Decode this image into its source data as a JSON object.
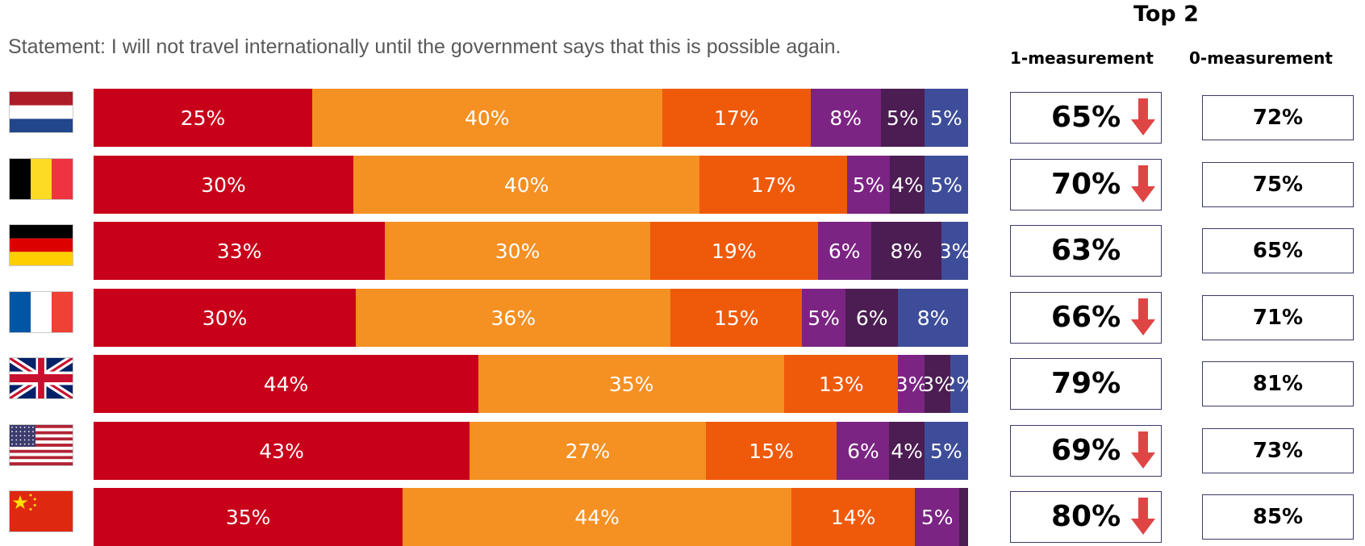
{
  "header": {
    "statement": "Statement: I will not travel internationally until the government says that this is possible again.",
    "top2_label": "Top 2",
    "col_1_label": "1-measurement",
    "col_0_label": "0-measurement"
  },
  "colors": {
    "seg1": "#c8001a",
    "seg2": "#f59023",
    "seg3": "#ef5a0a",
    "seg4": "#7b2483",
    "seg5": "#4b1d52",
    "seg6": "#3e4d9a",
    "arrow": "#e04545"
  },
  "chart_data": {
    "type": "bar",
    "orientation": "horizontal-stacked-100",
    "categories": [
      "Netherlands",
      "Belgium",
      "Germany",
      "France",
      "United Kingdom",
      "United States",
      "China"
    ],
    "series": [
      {
        "values": [
          25,
          30,
          33,
          30,
          44,
          43,
          35
        ],
        "labels": [
          "25%",
          "30%",
          "33%",
          "30%",
          "44%",
          "43%",
          "35%"
        ]
      },
      {
        "values": [
          40,
          40,
          30,
          36,
          35,
          27,
          44
        ],
        "labels": [
          "40%",
          "40%",
          "30%",
          "36%",
          "35%",
          "27%",
          "44%"
        ]
      },
      {
        "values": [
          17,
          17,
          19,
          15,
          13,
          15,
          14
        ],
        "labels": [
          "17%",
          "17%",
          "19%",
          "15%",
          "13%",
          "15%",
          "14%"
        ]
      },
      {
        "values": [
          8,
          5,
          6,
          5,
          3,
          6,
          5
        ],
        "labels": [
          "8%",
          "5%",
          "6%",
          "5%",
          "3%",
          "6%",
          "5%"
        ]
      },
      {
        "values": [
          5,
          4,
          8,
          6,
          3,
          4,
          1
        ],
        "labels": [
          "5%",
          "4%",
          "8%",
          "6%",
          "3%",
          "4%",
          ""
        ]
      },
      {
        "values": [
          5,
          5,
          3,
          8,
          2,
          5,
          0
        ],
        "labels": [
          "5%",
          "5%",
          "3%",
          "8%",
          "2%",
          "5%",
          ""
        ]
      }
    ],
    "flags": [
      "nl",
      "be",
      "de",
      "fr",
      "gb",
      "us",
      "cn"
    ],
    "top2_1_measurement": [
      "65%",
      "70%",
      "63%",
      "66%",
      "79%",
      "69%",
      "80%"
    ],
    "top2_1_arrow_down": [
      true,
      true,
      false,
      true,
      false,
      true,
      true
    ],
    "top2_0_measurement": [
      "72%",
      "75%",
      "65%",
      "71%",
      "81%",
      "73%",
      "85%"
    ],
    "xlim": [
      0,
      100
    ],
    "legend": "none"
  }
}
